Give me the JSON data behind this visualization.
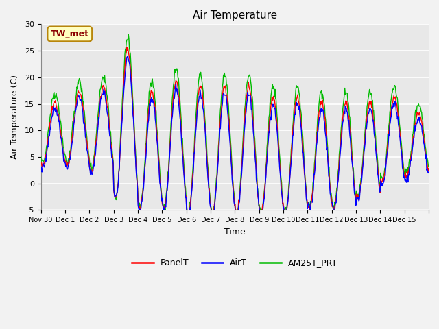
{
  "title": "Air Temperature",
  "ylabel": "Air Temperature (C)",
  "xlabel": "Time",
  "ylim": [
    -5,
    30
  ],
  "annotation_text": "TW_met",
  "annotation_dark_red": "#8B0000",
  "annotation_bg": "#FFFFC0",
  "annotation_border": "#B8860B",
  "colors": {
    "PanelT": "#FF0000",
    "AirT": "#0000FF",
    "AM25T_PRT": "#00BB00"
  },
  "legend_labels": [
    "PanelT",
    "AirT",
    "AM25T_PRT"
  ],
  "xtick_positions": [
    0,
    1,
    2,
    3,
    4,
    5,
    6,
    7,
    8,
    9,
    10,
    11,
    12,
    13,
    14,
    15,
    16
  ],
  "xtick_labels": [
    "Nov 30",
    "Dec 1",
    "Dec 2",
    "Dec 3",
    "Dec 4",
    "Dec 5",
    "Dec 6",
    "Dec 7",
    "Dec 8",
    "Dec 9",
    "Dec 10",
    "Dec 11",
    "Dec 12",
    "Dec 13",
    "Dec 14",
    "Dec 15",
    ""
  ],
  "ytick_positions": [
    -5,
    0,
    5,
    10,
    15,
    20,
    25,
    30
  ],
  "plot_bg": "#E8E8E8",
  "fig_bg": "#F2F2F2",
  "grid_color": "#FFFFFF",
  "linewidth": 1.0,
  "n_days": 16
}
